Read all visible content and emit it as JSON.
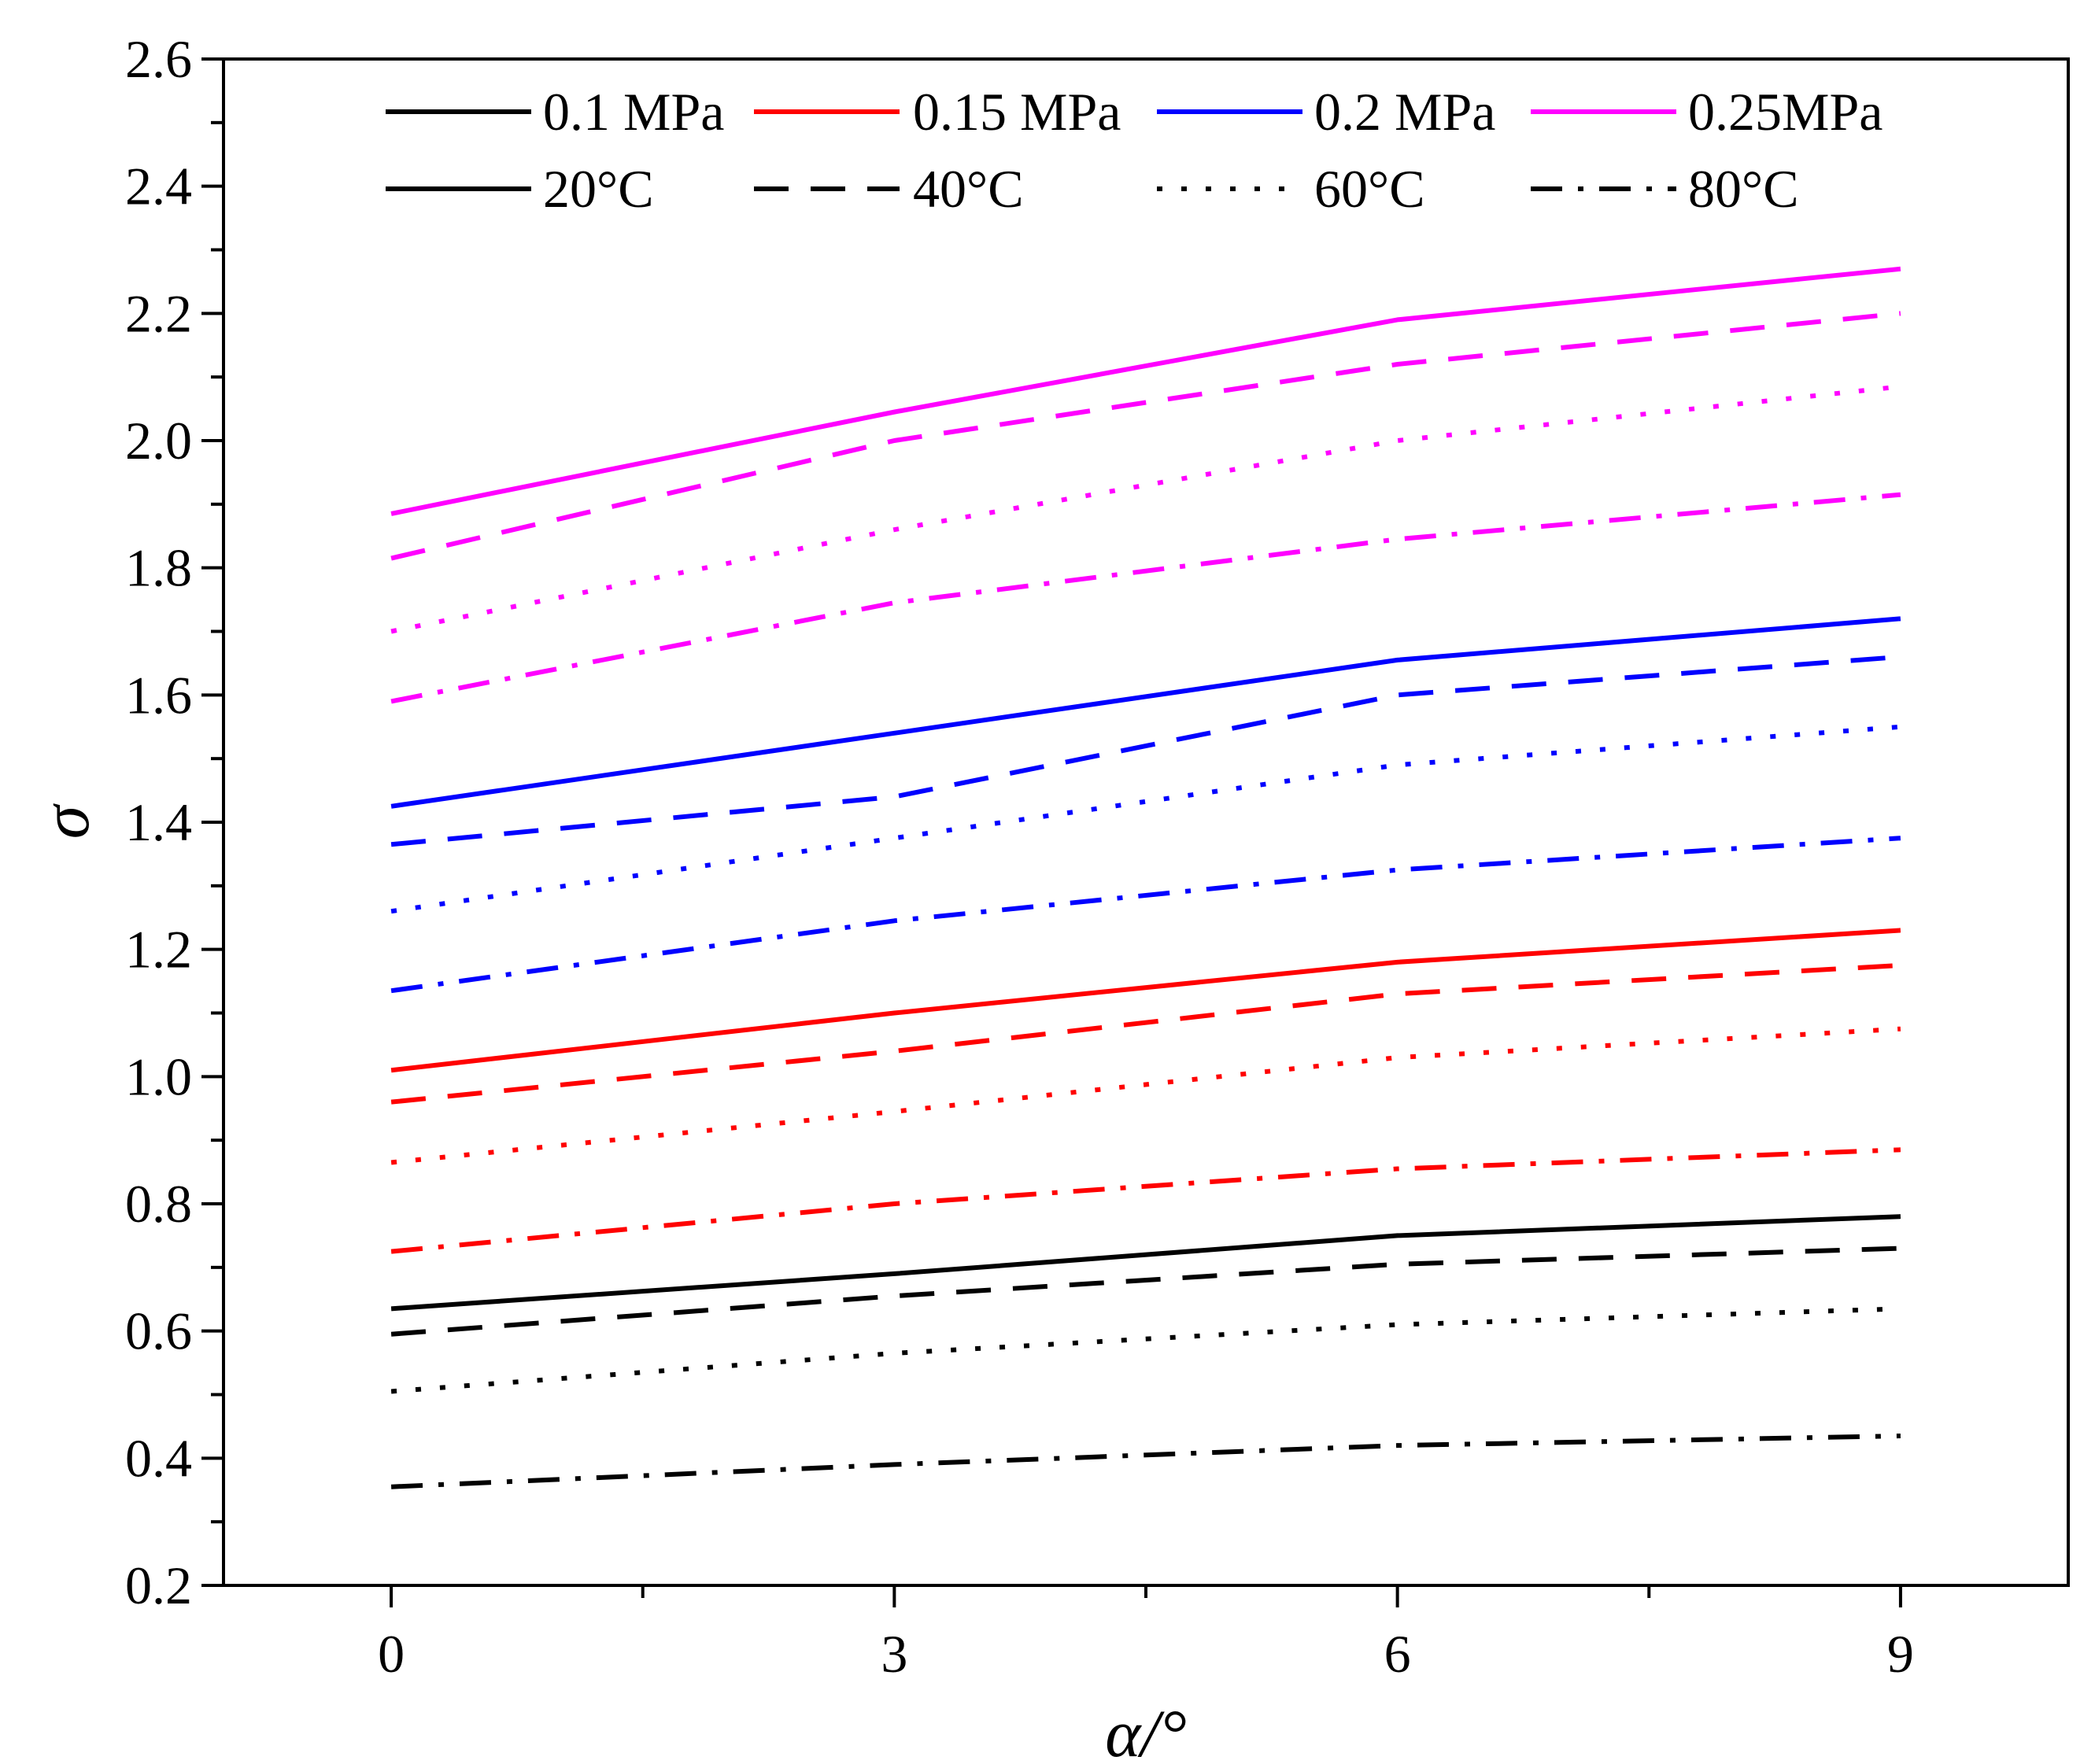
{
  "chart_data": {
    "type": "line",
    "title": "",
    "xlabel": "α/°",
    "ylabel": "σ",
    "xlim": [
      -1,
      10
    ],
    "ylim": [
      0.2,
      2.6
    ],
    "xticks": [
      0,
      3,
      6,
      9
    ],
    "xtick_labels": [
      "0",
      "3",
      "6",
      "9"
    ],
    "yticks": [
      0.2,
      0.4,
      0.6,
      0.8,
      1.0,
      1.2,
      1.4,
      1.6,
      1.8,
      2.0,
      2.2,
      2.4,
      2.6
    ],
    "ytick_labels": [
      "0.2",
      "0.4",
      "0.6",
      "0.8",
      "1.0",
      "1.2",
      "1.4",
      "1.6",
      "1.8",
      "2.0",
      "2.2",
      "2.4",
      "2.6"
    ],
    "grid": false,
    "legend_position": "top",
    "x": [
      0,
      3,
      6,
      9
    ],
    "pressure_legend": [
      {
        "label": "0.1 MPa",
        "color": "#000000"
      },
      {
        "label": "0.15 MPa",
        "color": "#ff0000"
      },
      {
        "label": "0.2 MPa",
        "color": "#0000ff"
      },
      {
        "label": "0.25MPa",
        "color": "#ff00ff"
      }
    ],
    "temperature_legend": [
      {
        "label": "20°C",
        "style": "solid"
      },
      {
        "label": "40°C",
        "style": "dash"
      },
      {
        "label": "60°C",
        "style": "dot"
      },
      {
        "label": "80°C",
        "style": "dashdot"
      }
    ],
    "series": [
      {
        "name": "0.1 MPa, 20°C",
        "pressure": "0.1 MPa",
        "temperature": "20°C",
        "color": "#000000",
        "style": "solid",
        "values": [
          0.635,
          0.69,
          0.75,
          0.78
        ]
      },
      {
        "name": "0.1 MPa, 40°C",
        "pressure": "0.1 MPa",
        "temperature": "40°C",
        "color": "#000000",
        "style": "dash",
        "values": [
          0.595,
          0.655,
          0.705,
          0.73
        ]
      },
      {
        "name": "0.1 MPa, 60°C",
        "pressure": "0.1 MPa",
        "temperature": "60°C",
        "color": "#000000",
        "style": "dot",
        "values": [
          0.505,
          0.565,
          0.61,
          0.635
        ]
      },
      {
        "name": "0.1 MPa, 80°C",
        "pressure": "0.1 MPa",
        "temperature": "80°C",
        "color": "#000000",
        "style": "dashdot",
        "values": [
          0.355,
          0.39,
          0.42,
          0.435
        ]
      },
      {
        "name": "0.15 MPa, 20°C",
        "pressure": "0.15 MPa",
        "temperature": "20°C",
        "color": "#ff0000",
        "style": "solid",
        "values": [
          1.01,
          1.1,
          1.18,
          1.23
        ]
      },
      {
        "name": "0.15 MPa, 40°C",
        "pressure": "0.15 MPa",
        "temperature": "40°C",
        "color": "#ff0000",
        "style": "dash",
        "values": [
          0.96,
          1.04,
          1.13,
          1.175
        ]
      },
      {
        "name": "0.15 MPa, 60°C",
        "pressure": "0.15 MPa",
        "temperature": "60°C",
        "color": "#ff0000",
        "style": "dot",
        "values": [
          0.865,
          0.945,
          1.03,
          1.075
        ]
      },
      {
        "name": "0.15 MPa, 80°C",
        "pressure": "0.15 MPa",
        "temperature": "80°C",
        "color": "#ff0000",
        "style": "dashdot",
        "values": [
          0.725,
          0.8,
          0.855,
          0.885
        ]
      },
      {
        "name": "0.2 MPa, 20°C",
        "pressure": "0.2 MPa",
        "temperature": "20°C",
        "color": "#0000ff",
        "style": "solid",
        "values": [
          1.425,
          1.54,
          1.655,
          1.72
        ]
      },
      {
        "name": "0.2 MPa, 40°C",
        "pressure": "0.2 MPa",
        "temperature": "40°C",
        "color": "#0000ff",
        "style": "dash",
        "values": [
          1.365,
          1.44,
          1.6,
          1.66
        ]
      },
      {
        "name": "0.2 MPa, 60°C",
        "pressure": "0.2 MPa",
        "temperature": "60°C",
        "color": "#0000ff",
        "style": "dot",
        "values": [
          1.26,
          1.375,
          1.49,
          1.55
        ]
      },
      {
        "name": "0.2 MPa, 80°C",
        "pressure": "0.2 MPa",
        "temperature": "80°C",
        "color": "#0000ff",
        "style": "dashdot",
        "values": [
          1.135,
          1.245,
          1.325,
          1.375
        ]
      },
      {
        "name": "0.25MPa, 20°C",
        "pressure": "0.25MPa",
        "temperature": "20°C",
        "color": "#ff00ff",
        "style": "solid",
        "values": [
          1.885,
          2.045,
          2.19,
          2.27
        ]
      },
      {
        "name": "0.25MPa, 40°C",
        "pressure": "0.25MPa",
        "temperature": "40°C",
        "color": "#ff00ff",
        "style": "dash",
        "values": [
          1.815,
          2.0,
          2.12,
          2.2
        ]
      },
      {
        "name": "0.25MPa, 60°C",
        "pressure": "0.25MPa",
        "temperature": "60°C",
        "color": "#ff00ff",
        "style": "dot",
        "values": [
          1.7,
          1.86,
          2.0,
          2.085
        ]
      },
      {
        "name": "0.25MPa, 80°C",
        "pressure": "0.25MPa",
        "temperature": "80°C",
        "color": "#ff00ff",
        "style": "dashdot",
        "values": [
          1.59,
          1.745,
          1.845,
          1.915
        ]
      }
    ]
  }
}
